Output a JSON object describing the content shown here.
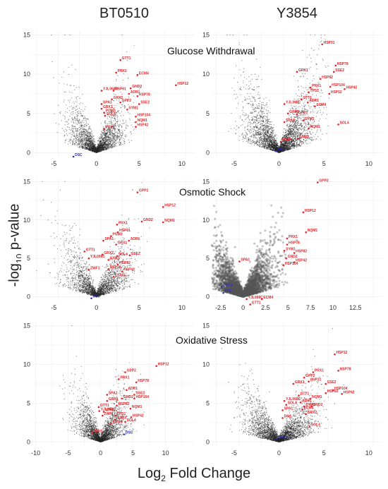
{
  "columns": [
    "BT0510",
    "Y3854"
  ],
  "rows": [
    "Glucose Withdrawal",
    "Osmotic Shock",
    "Oxidative Stress"
  ],
  "axes": {
    "y_label_prefix": "-log",
    "y_label_sub": "10",
    "y_label_suffix": " p-value",
    "x_label_prefix": "Log",
    "x_label_sub": "2",
    "x_label_suffix": " Fold Change"
  },
  "colors": {
    "up": "#e0242a",
    "down": "#2b2ea8",
    "points": "#111111"
  },
  "chart_data": [
    {
      "type": "scatter",
      "row": "Glucose Withdrawal",
      "column": "BT0510",
      "xlim": [
        -7.5,
        11.5
      ],
      "ylim": [
        -0.5,
        15.5
      ],
      "xticks": [
        -5,
        0,
        5,
        10
      ],
      "yticks": [
        0,
        5,
        10,
        15
      ],
      "show_yticks": true,
      "cloud": {
        "n": 2600,
        "maxx": 5,
        "maxy": 11
      },
      "labels": [
        {
          "text": "GTT1",
          "x": 2.8,
          "y": 11.8,
          "c": "up"
        },
        {
          "text": "HSP12",
          "x": 9.3,
          "y": 8.6,
          "c": "up"
        },
        {
          "text": "PRX1",
          "x": 2.3,
          "y": 10.2,
          "c": "up"
        },
        {
          "text": "ECM4",
          "x": 4.8,
          "y": 9.9,
          "c": "up"
        },
        {
          "text": "GND2",
          "x": 4.0,
          "y": 8.2,
          "c": "up"
        },
        {
          "text": "YJL068C",
          "x": 0.6,
          "y": 7.9,
          "c": "up"
        },
        {
          "text": "HSP31",
          "x": 2.0,
          "y": 7.9,
          "c": "up"
        },
        {
          "text": "ADR1",
          "x": 3.8,
          "y": 7.5,
          "c": "up"
        },
        {
          "text": "HSP78",
          "x": 4.8,
          "y": 7.2,
          "c": "up"
        },
        {
          "text": "GRX2",
          "x": 1.8,
          "y": 6.8,
          "c": "up"
        },
        {
          "text": "GPP2",
          "x": 2.8,
          "y": 6.4,
          "c": "up"
        },
        {
          "text": "SSE2",
          "x": 5.0,
          "y": 6.2,
          "c": "up"
        },
        {
          "text": "SPA1",
          "x": 0.6,
          "y": 6.2,
          "c": "up"
        },
        {
          "text": "SYM1",
          "x": 3.6,
          "y": 5.5,
          "c": "up"
        },
        {
          "text": "GRX1",
          "x": 0.6,
          "y": 5.6,
          "c": "up"
        },
        {
          "text": "PGM3",
          "x": 0.9,
          "y": 5.1,
          "c": "up"
        },
        {
          "text": "HSP104",
          "x": 4.6,
          "y": 4.6,
          "c": "up"
        },
        {
          "text": "SOL4",
          "x": 1.0,
          "y": 4.7,
          "c": "up"
        },
        {
          "text": "NQM1",
          "x": 4.6,
          "y": 3.9,
          "c": "up"
        },
        {
          "text": "HSP42",
          "x": 4.6,
          "y": 3.3,
          "c": "up"
        },
        {
          "text": "YRP1",
          "x": 0.9,
          "y": 3.0,
          "c": "up"
        },
        {
          "text": "DSC",
          "x": -2.7,
          "y": -0.5,
          "c": "down"
        }
      ]
    },
    {
      "type": "scatter",
      "row": "Glucose Withdrawal",
      "column": "Y3854",
      "xlim": [
        -7.5,
        11.5
      ],
      "ylim": [
        -0.5,
        15.5
      ],
      "xticks": [
        -5,
        0,
        5,
        10
      ],
      "yticks": [
        0,
        5,
        10,
        15
      ],
      "show_yticks": true,
      "cloud": {
        "n": 3400,
        "maxx": 6,
        "maxy": 14
      },
      "labels": [
        {
          "text": "HSP31",
          "x": 4.8,
          "y": 13.8,
          "c": "up"
        },
        {
          "text": "HSP78",
          "x": 6.3,
          "y": 11.1,
          "c": "up"
        },
        {
          "text": "GRX1",
          "x": 2.0,
          "y": 10.3,
          "c": "up"
        },
        {
          "text": "SSE2",
          "x": 6.1,
          "y": 10.3,
          "c": "up"
        },
        {
          "text": "HSP82",
          "x": 4.6,
          "y": 9.4,
          "c": "up"
        },
        {
          "text": "HSP104",
          "x": 5.7,
          "y": 8.4,
          "c": "up"
        },
        {
          "text": "PRX1",
          "x": 3.5,
          "y": 8.3,
          "c": "up"
        },
        {
          "text": "HSP42",
          "x": 7.3,
          "y": 8.1,
          "c": "up"
        },
        {
          "text": "TPS1",
          "x": 3.3,
          "y": 7.7,
          "c": "up"
        },
        {
          "text": "HSP12",
          "x": 5.6,
          "y": 7.5,
          "c": "up"
        },
        {
          "text": "GTT1",
          "x": 2.5,
          "y": 6.8,
          "c": "up"
        },
        {
          "text": "YJL068C",
          "x": 0.6,
          "y": 6.2,
          "c": "up"
        },
        {
          "text": "ADR1",
          "x": 3.2,
          "y": 6.4,
          "c": "up"
        },
        {
          "text": "ECM4",
          "x": 4.0,
          "y": 5.9,
          "c": "up"
        },
        {
          "text": "GRX2",
          "x": 1.0,
          "y": 5.0,
          "c": "up"
        },
        {
          "text": "GPP2",
          "x": 2.0,
          "y": 4.9,
          "c": "up"
        },
        {
          "text": "SOL4",
          "x": 6.6,
          "y": 3.6,
          "c": "up"
        },
        {
          "text": "SYM1",
          "x": 2.7,
          "y": 4.1,
          "c": "up"
        },
        {
          "text": "NQM1",
          "x": 3.3,
          "y": 3.1,
          "c": "up"
        },
        {
          "text": "SPA1",
          "x": 0.6,
          "y": 3.9,
          "c": "up"
        },
        {
          "text": "GND2",
          "x": 2.1,
          "y": 1.8,
          "c": "up"
        },
        {
          "text": "PGM3",
          "x": 0.2,
          "y": 1.4,
          "c": "up"
        },
        {
          "text": "DSC",
          "x": -0.3,
          "y": 0.2,
          "c": "down"
        }
      ]
    },
    {
      "type": "scatter",
      "row": "Osmotic Shock",
      "column": "BT0510",
      "xlim": [
        -7.5,
        11.5
      ],
      "ylim": [
        -0.5,
        15.5
      ],
      "xticks": [
        -5,
        0,
        5,
        10
      ],
      "yticks": [
        0,
        5,
        10,
        15
      ],
      "show_yticks": true,
      "cloud": {
        "n": 2400,
        "maxx": 6,
        "maxy": 12
      },
      "labels": [
        {
          "text": "GPP2",
          "x": 4.8,
          "y": 13.6,
          "c": "up"
        },
        {
          "text": "HSP12",
          "x": 7.8,
          "y": 11.7,
          "c": "up"
        },
        {
          "text": "GND2",
          "x": 5.3,
          "y": 9.8,
          "c": "up"
        },
        {
          "text": "NQM1",
          "x": 7.8,
          "y": 9.7,
          "c": "up"
        },
        {
          "text": "PRX1",
          "x": 2.4,
          "y": 9.4,
          "c": "up"
        },
        {
          "text": "HSP31",
          "x": 2.5,
          "y": 8.4,
          "c": "up"
        },
        {
          "text": "PGM3",
          "x": 1.7,
          "y": 7.9,
          "c": "up"
        },
        {
          "text": "SPA1",
          "x": 0.8,
          "y": 7.3,
          "c": "up"
        },
        {
          "text": "ADR1",
          "x": 3.8,
          "y": 7.3,
          "c": "up"
        },
        {
          "text": "GRX1",
          "x": 2.3,
          "y": 6.8,
          "c": "up"
        },
        {
          "text": "GTT1",
          "x": -1.4,
          "y": 5.9,
          "c": "up"
        },
        {
          "text": "GRX2",
          "x": 0.7,
          "y": 5.5,
          "c": "up"
        },
        {
          "text": "YJL068C",
          "x": -0.9,
          "y": 5.0,
          "c": "up"
        },
        {
          "text": "SSE2",
          "x": 3.9,
          "y": 5.4,
          "c": "up"
        },
        {
          "text": "SOL4",
          "x": 2.4,
          "y": 5.3,
          "c": "up"
        },
        {
          "text": "SYM1",
          "x": 1.4,
          "y": 4.8,
          "c": "up"
        },
        {
          "text": "ZWF1",
          "x": -0.9,
          "y": 3.5,
          "c": "up"
        },
        {
          "text": "HSP82",
          "x": 2.5,
          "y": 4.2,
          "c": "up"
        },
        {
          "text": "HSP78",
          "x": 1.4,
          "y": 3.6,
          "c": "up"
        },
        {
          "text": "HSP42",
          "x": 3.0,
          "y": 3.3,
          "c": "up"
        },
        {
          "text": "ECM4",
          "x": 2.0,
          "y": 2.6,
          "c": "up"
        },
        {
          "text": "DSC",
          "x": -0.6,
          "y": -0.2,
          "c": "down"
        }
      ]
    },
    {
      "type": "scatter",
      "row": "Osmotic Shock",
      "column": "Y3854",
      "xlim": [
        -3.5,
        15.5
      ],
      "ylim": [
        -0.5,
        15.5
      ],
      "xticks": [
        -2.5,
        0,
        2.5,
        5,
        7.5,
        10,
        12.5
      ],
      "yticks": [
        0,
        5,
        10,
        15
      ],
      "show_yticks": true,
      "cloud": {
        "n": 3600,
        "maxx": 5,
        "maxy": 10,
        "big": true
      },
      "labels": [
        {
          "text": "GPP2",
          "x": 8.3,
          "y": 14.9,
          "c": "up"
        },
        {
          "text": "HSP12",
          "x": 6.7,
          "y": 11.0,
          "c": "up"
        },
        {
          "text": "NQM1",
          "x": 7.0,
          "y": 8.4,
          "c": "up"
        },
        {
          "text": "PRX1",
          "x": 4.9,
          "y": 7.6,
          "c": "up"
        },
        {
          "text": "HSP78",
          "x": 4.9,
          "y": 6.8,
          "c": "up"
        },
        {
          "text": "SYM1",
          "x": 4.6,
          "y": 6.0,
          "c": "up"
        },
        {
          "text": "HSP82",
          "x": 5.7,
          "y": 5.7,
          "c": "up"
        },
        {
          "text": "GND2",
          "x": 4.8,
          "y": 5.0,
          "c": "up"
        },
        {
          "text": "HSP42",
          "x": 5.7,
          "y": 4.5,
          "c": "up"
        },
        {
          "text": "HSP104",
          "x": 4.5,
          "y": 4.1,
          "c": "up"
        },
        {
          "text": "SPA1",
          "x": -0.4,
          "y": 4.6,
          "c": "up"
        },
        {
          "text": "YJL068C",
          "x": 0.4,
          "y": -0.3,
          "c": "up"
        },
        {
          "text": "ECM4",
          "x": 2.1,
          "y": -0.3,
          "c": "up"
        },
        {
          "text": "GTT1",
          "x": 0.8,
          "y": -1.0,
          "c": "up"
        },
        {
          "text": "ZWF1",
          "x": -2.4,
          "y": 1.3,
          "c": "down"
        },
        {
          "text": "DSC",
          "x": -2.2,
          "y": 0.5,
          "c": "down"
        }
      ]
    },
    {
      "type": "scatter",
      "row": "Oxidative Stress",
      "column": "BT0510",
      "xlim": [
        -10.5,
        14.5
      ],
      "ylim": [
        -0.5,
        15.5
      ],
      "xticks": [
        -10,
        -5,
        0,
        5,
        10
      ],
      "yticks": [
        0,
        5,
        10,
        15
      ],
      "show_yticks": true,
      "cloud": {
        "n": 2600,
        "maxx": 6,
        "maxy": 10
      },
      "labels": [
        {
          "text": "HSP12",
          "x": 8.6,
          "y": 9.8,
          "c": "up"
        },
        {
          "text": "GPP2",
          "x": 3.8,
          "y": 9.0,
          "c": "up"
        },
        {
          "text": "PRX1",
          "x": 2.8,
          "y": 8.1,
          "c": "up"
        },
        {
          "text": "HSP78",
          "x": 5.5,
          "y": 7.7,
          "c": "up"
        },
        {
          "text": "ADR1",
          "x": 4.0,
          "y": 6.7,
          "c": "up"
        },
        {
          "text": "SPA1",
          "x": 1.0,
          "y": 6.1,
          "c": "up"
        },
        {
          "text": "SSE2",
          "x": 5.2,
          "y": 6.1,
          "c": "up"
        },
        {
          "text": "GND2",
          "x": 3.3,
          "y": 5.6,
          "c": "up"
        },
        {
          "text": "HSP104",
          "x": 5.2,
          "y": 5.6,
          "c": "up"
        },
        {
          "text": "GRX2",
          "x": 1.0,
          "y": 5.3,
          "c": "up"
        },
        {
          "text": "GTT1",
          "x": -0.3,
          "y": 4.5,
          "c": "up"
        },
        {
          "text": "YJL068C",
          "x": -0.2,
          "y": 4.0,
          "c": "up"
        },
        {
          "text": "HSP82",
          "x": 2.5,
          "y": 4.7,
          "c": "up"
        },
        {
          "text": "NQM1",
          "x": 4.6,
          "y": 4.3,
          "c": "up"
        },
        {
          "text": "SYM1",
          "x": 0.5,
          "y": 3.9,
          "c": "up"
        },
        {
          "text": "ZWF1",
          "x": 0.3,
          "y": 3.4,
          "c": "up"
        },
        {
          "text": "TPS1",
          "x": 2.3,
          "y": 3.4,
          "c": "up"
        },
        {
          "text": "HSP42",
          "x": 4.7,
          "y": 3.2,
          "c": "up"
        },
        {
          "text": "PGM3",
          "x": 2.2,
          "y": 2.9,
          "c": "up"
        },
        {
          "text": "SOL4",
          "x": 3.8,
          "y": 2.6,
          "c": "up"
        },
        {
          "text": "ECM4",
          "x": 1.6,
          "y": 2.4,
          "c": "up"
        },
        {
          "text": "TDH1",
          "x": -1.3,
          "y": 1.2,
          "c": "up"
        },
        {
          "text": "DSC",
          "x": 3.6,
          "y": 1.0,
          "c": "down"
        }
      ]
    },
    {
      "type": "scatter",
      "row": "Oxidative Stress",
      "column": "Y3854",
      "xlim": [
        -7.5,
        11.5
      ],
      "ylim": [
        -0.5,
        15.5
      ],
      "xticks": [
        -5,
        0,
        5,
        10
      ],
      "yticks": [
        0,
        5,
        10,
        15
      ],
      "show_yticks": true,
      "cloud": {
        "n": 3000,
        "maxx": 6,
        "maxy": 10
      },
      "labels": [
        {
          "text": "HSP12",
          "x": 6.2,
          "y": 11.3,
          "c": "up"
        },
        {
          "text": "HSP78",
          "x": 6.6,
          "y": 9.2,
          "c": "up"
        },
        {
          "text": "PRX1",
          "x": 3.8,
          "y": 9.0,
          "c": "up"
        },
        {
          "text": "GPP2",
          "x": 2.8,
          "y": 8.3,
          "c": "up"
        },
        {
          "text": "HSP31",
          "x": 3.3,
          "y": 7.8,
          "c": "up"
        },
        {
          "text": "GRX1",
          "x": 1.6,
          "y": 7.5,
          "c": "up"
        },
        {
          "text": "SSE2",
          "x": 5.2,
          "y": 7.5,
          "c": "up"
        },
        {
          "text": "HSP104",
          "x": 6.0,
          "y": 6.7,
          "c": "up"
        },
        {
          "text": "HSP42",
          "x": 7.0,
          "y": 6.2,
          "c": "up"
        },
        {
          "text": "HSP82",
          "x": 5.2,
          "y": 6.3,
          "c": "up"
        },
        {
          "text": "GTT1",
          "x": 2.2,
          "y": 6.0,
          "c": "up"
        },
        {
          "text": "NQM1",
          "x": 3.5,
          "y": 5.6,
          "c": "up"
        },
        {
          "text": "YJL068C",
          "x": 0.6,
          "y": 5.3,
          "c": "up"
        },
        {
          "text": "ADR1",
          "x": 2.4,
          "y": 5.1,
          "c": "up"
        },
        {
          "text": "SOL4",
          "x": 0.8,
          "y": 4.8,
          "c": "up"
        },
        {
          "text": "SYM1",
          "x": 2.8,
          "y": 4.6,
          "c": "up"
        },
        {
          "text": "GND2",
          "x": 3.6,
          "y": 4.6,
          "c": "up"
        },
        {
          "text": "ECM4",
          "x": 2.6,
          "y": 4.2,
          "c": "up"
        },
        {
          "text": "SPA1",
          "x": 0.4,
          "y": 4.1,
          "c": "up"
        },
        {
          "text": "GRX2",
          "x": 3.0,
          "y": 3.6,
          "c": "up"
        },
        {
          "text": "DSC",
          "x": 0.4,
          "y": 3.1,
          "c": "up"
        },
        {
          "text": "SOL4",
          "x": 3.4,
          "y": 2.0,
          "c": "up"
        },
        {
          "text": "ZWF1",
          "x": -0.3,
          "y": 0.4,
          "c": "down"
        }
      ]
    }
  ]
}
